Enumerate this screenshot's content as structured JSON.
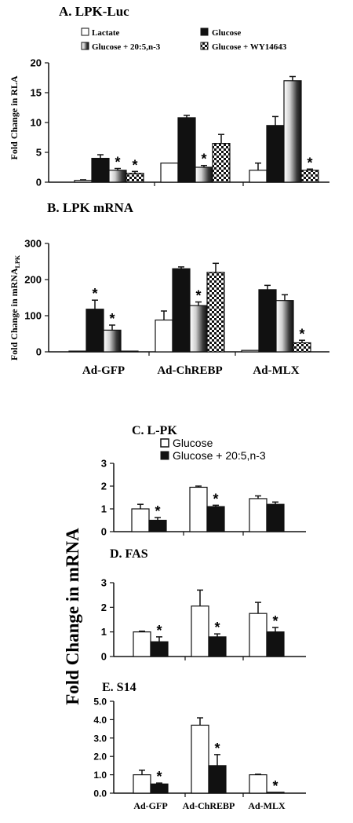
{
  "colors": {
    "ink": "#111111",
    "white": "#ffffff",
    "light_gray": "#d8d8d8"
  },
  "chart_data": [
    {
      "id": "A",
      "panel_label": "A. LPK-Luc",
      "type": "bar",
      "ylabel": "Fold Change in RLA",
      "ylim": [
        0,
        20
      ],
      "yticks": [
        "0",
        "5",
        "10",
        "15",
        "20"
      ],
      "categories": [
        "Ad-GFP",
        "Ad-ChREBP",
        "Ad-MLX"
      ],
      "category_labels_shown": false,
      "legend_columns": 2,
      "series": [
        {
          "name": "Lactate",
          "pattern": "white",
          "values": [
            0.3,
            3.2,
            2.0
          ],
          "errors": [
            0.1,
            0.0,
            1.2
          ]
        },
        {
          "name": "Glucose",
          "pattern": "black",
          "values": [
            4.0,
            10.8,
            9.5
          ],
          "errors": [
            0.6,
            0.4,
            1.5
          ]
        },
        {
          "name": "Glucose + 20:5,n-3",
          "pattern": "gradient",
          "values": [
            2.0,
            2.5,
            17.0
          ],
          "errors": [
            0.3,
            0.3,
            0.7
          ]
        },
        {
          "name": "Glucose + WY14643",
          "pattern": "checker",
          "values": [
            1.5,
            6.5,
            2.0
          ],
          "errors": [
            0.3,
            1.5,
            0.2
          ]
        }
      ],
      "significance": [
        [
          2,
          0
        ],
        [
          3,
          0
        ],
        [
          2,
          1
        ],
        [
          3,
          2
        ]
      ]
    },
    {
      "id": "B",
      "panel_label": "B. LPK mRNA",
      "type": "bar",
      "ylabel": "Fold Change in mRNA",
      "ylabel_subscript": "LPK",
      "ylim": [
        0,
        300
      ],
      "yticks": [
        "0",
        "100",
        "200",
        "300"
      ],
      "categories": [
        "Ad-GFP",
        "Ad-ChREBP",
        "Ad-MLX"
      ],
      "category_labels_shown": true,
      "series": [
        {
          "name": "Lactate",
          "pattern": "white",
          "values": [
            2,
            88,
            4
          ],
          "errors": [
            0,
            25,
            0
          ]
        },
        {
          "name": "Glucose",
          "pattern": "black",
          "values": [
            118,
            230,
            172
          ],
          "errors": [
            25,
            5,
            12
          ]
        },
        {
          "name": "Glucose + 20:5,n-3",
          "pattern": "gradient",
          "values": [
            60,
            128,
            142
          ],
          "errors": [
            14,
            10,
            16
          ]
        },
        {
          "name": "Glucose + WY14643",
          "pattern": "checker",
          "values": [
            2,
            220,
            25
          ],
          "errors": [
            0,
            25,
            7
          ]
        }
      ],
      "significance": [
        [
          1,
          0
        ],
        [
          2,
          0
        ],
        [
          2,
          1
        ],
        [
          3,
          2
        ]
      ]
    },
    {
      "id": "C",
      "panel_label": "C. L-PK",
      "type": "bar",
      "ylim": [
        0,
        3
      ],
      "yticks": [
        "0",
        "1",
        "2",
        "3"
      ],
      "categories": [
        "Ad-GFP",
        "Ad-ChREBP",
        "Ad-MLX"
      ],
      "category_labels_shown": false,
      "series": [
        {
          "name": "Glucose",
          "pattern": "white",
          "values": [
            1.0,
            1.95,
            1.45
          ],
          "errors": [
            0.2,
            0.05,
            0.12
          ]
        },
        {
          "name": "Glucose + 20:5,n-3",
          "pattern": "black",
          "values": [
            0.5,
            1.1,
            1.2
          ],
          "errors": [
            0.12,
            0.06,
            0.1
          ]
        }
      ],
      "significance": [
        [
          1,
          0
        ],
        [
          1,
          1
        ]
      ]
    },
    {
      "id": "D",
      "panel_label": "D. FAS",
      "type": "bar",
      "ylim": [
        0,
        3
      ],
      "yticks": [
        "0",
        "1",
        "2",
        "3"
      ],
      "categories": [
        "Ad-GFP",
        "Ad-ChREBP",
        "Ad-MLX"
      ],
      "category_labels_shown": false,
      "series": [
        {
          "name": "Glucose",
          "pattern": "white",
          "values": [
            1.0,
            2.05,
            1.75
          ],
          "errors": [
            0.03,
            0.65,
            0.45
          ]
        },
        {
          "name": "Glucose + 20:5,n-3",
          "pattern": "black",
          "values": [
            0.6,
            0.8,
            1.0
          ],
          "errors": [
            0.2,
            0.12,
            0.18
          ]
        }
      ],
      "significance": [
        [
          1,
          0
        ],
        [
          1,
          1
        ],
        [
          1,
          2
        ]
      ]
    },
    {
      "id": "E",
      "panel_label": "E. S14",
      "type": "bar",
      "ylim": [
        0,
        5
      ],
      "yticks": [
        "0.0",
        "1.0",
        "2.0",
        "3.0",
        "4.0",
        "5.0"
      ],
      "categories": [
        "Ad-GFP",
        "Ad-ChREBP",
        "Ad-MLX"
      ],
      "category_labels_shown": true,
      "series": [
        {
          "name": "Glucose",
          "pattern": "white",
          "values": [
            1.0,
            3.7,
            1.0
          ],
          "errors": [
            0.25,
            0.4,
            0.03
          ]
        },
        {
          "name": "Glucose + 20:5,n-3",
          "pattern": "black",
          "values": [
            0.5,
            1.5,
            0.05
          ],
          "errors": [
            0.05,
            0.6,
            0.0
          ]
        }
      ],
      "significance": [
        [
          1,
          0
        ],
        [
          1,
          1
        ],
        [
          1,
          2
        ]
      ]
    }
  ],
  "shared_ylabel_CDE": "Fold Change in mRNA"
}
